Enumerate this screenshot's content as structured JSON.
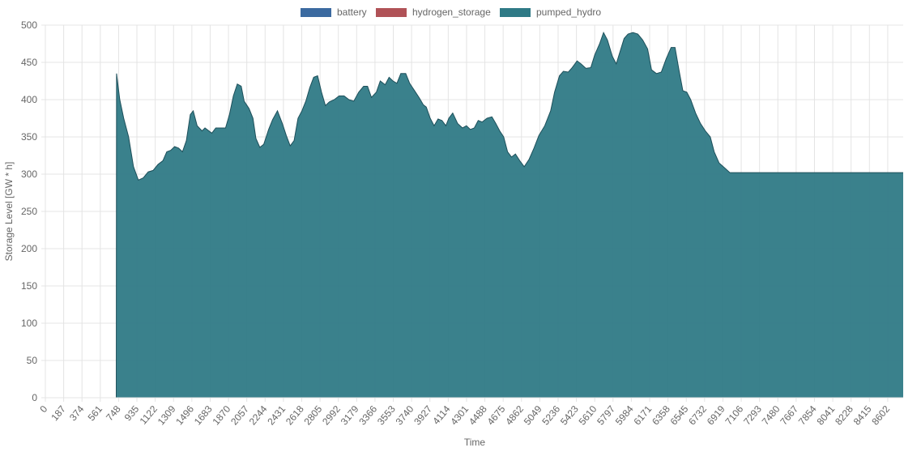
{
  "colors": {
    "battery": "#3b6aa0",
    "hydrogen_storage": "#b05257",
    "pumped_hydro": "#2f7a86",
    "grid": "#e4e4e4",
    "axis": "#999999",
    "text": "#666666"
  },
  "chart_data": {
    "type": "area",
    "xlabel": "Time",
    "ylabel": "Storage Level [GW * h]",
    "ylim": [
      0,
      500
    ],
    "xlim": [
      0,
      8760
    ],
    "yticks": [
      0,
      50,
      100,
      150,
      200,
      250,
      300,
      350,
      400,
      450,
      500
    ],
    "xticks": [
      0,
      187,
      374,
      561,
      748,
      935,
      1122,
      1309,
      1496,
      1683,
      1870,
      2057,
      2244,
      2431,
      2618,
      2805,
      2992,
      3179,
      3366,
      3553,
      3740,
      3927,
      4114,
      4301,
      4488,
      4675,
      4862,
      5049,
      5236,
      5423,
      5610,
      5797,
      5984,
      6171,
      6358,
      6545,
      6732,
      6919,
      7106,
      7293,
      7480,
      7667,
      7854,
      8041,
      8228,
      8415,
      8602
    ],
    "grid": true,
    "legend_position": "top",
    "series": [
      {
        "name": "battery",
        "color": "#3b6aa0",
        "points": [
          [
            0,
            0
          ],
          [
            8760,
            0
          ]
        ]
      },
      {
        "name": "hydrogen_storage",
        "color": "#b05257",
        "points": [
          [
            0,
            0
          ],
          [
            8760,
            0
          ]
        ]
      },
      {
        "name": "pumped_hydro",
        "color": "#2f7a86",
        "points": [
          [
            0,
            0
          ],
          [
            720,
            0
          ],
          [
            724,
            0
          ],
          [
            727,
            435
          ],
          [
            760,
            400
          ],
          [
            800,
            375
          ],
          [
            850,
            350
          ],
          [
            900,
            310
          ],
          [
            950,
            292
          ],
          [
            1000,
            295
          ],
          [
            1050,
            303
          ],
          [
            1100,
            305
          ],
          [
            1150,
            313
          ],
          [
            1200,
            318
          ],
          [
            1240,
            330
          ],
          [
            1280,
            332
          ],
          [
            1320,
            337
          ],
          [
            1360,
            335
          ],
          [
            1400,
            330
          ],
          [
            1440,
            345
          ],
          [
            1480,
            380
          ],
          [
            1510,
            385
          ],
          [
            1550,
            365
          ],
          [
            1600,
            358
          ],
          [
            1630,
            362
          ],
          [
            1700,
            355
          ],
          [
            1740,
            362
          ],
          [
            1800,
            362
          ],
          [
            1840,
            362
          ],
          [
            1880,
            380
          ],
          [
            1920,
            405
          ],
          [
            1960,
            421
          ],
          [
            2000,
            418
          ],
          [
            2030,
            398
          ],
          [
            2080,
            388
          ],
          [
            2120,
            375
          ],
          [
            2150,
            348
          ],
          [
            2190,
            336
          ],
          [
            2230,
            340
          ],
          [
            2280,
            360
          ],
          [
            2320,
            373
          ],
          [
            2370,
            385
          ],
          [
            2420,
            368
          ],
          [
            2460,
            352
          ],
          [
            2500,
            338
          ],
          [
            2540,
            345
          ],
          [
            2580,
            375
          ],
          [
            2620,
            385
          ],
          [
            2660,
            398
          ],
          [
            2700,
            416
          ],
          [
            2740,
            430
          ],
          [
            2780,
            432
          ],
          [
            2820,
            410
          ],
          [
            2860,
            392
          ],
          [
            2900,
            397
          ],
          [
            2950,
            400
          ],
          [
            3000,
            405
          ],
          [
            3050,
            405
          ],
          [
            3100,
            400
          ],
          [
            3150,
            398
          ],
          [
            3200,
            410
          ],
          [
            3250,
            418
          ],
          [
            3290,
            418
          ],
          [
            3330,
            403
          ],
          [
            3380,
            410
          ],
          [
            3420,
            425
          ],
          [
            3470,
            420
          ],
          [
            3510,
            430
          ],
          [
            3550,
            425
          ],
          [
            3590,
            422
          ],
          [
            3630,
            435
          ],
          [
            3680,
            435
          ],
          [
            3720,
            422
          ],
          [
            3770,
            412
          ],
          [
            3820,
            402
          ],
          [
            3860,
            393
          ],
          [
            3890,
            390
          ],
          [
            3930,
            375
          ],
          [
            3970,
            365
          ],
          [
            4010,
            374
          ],
          [
            4050,
            372
          ],
          [
            4090,
            365
          ],
          [
            4120,
            375
          ],
          [
            4160,
            382
          ],
          [
            4210,
            368
          ],
          [
            4260,
            362
          ],
          [
            4300,
            365
          ],
          [
            4340,
            360
          ],
          [
            4380,
            362
          ],
          [
            4420,
            372
          ],
          [
            4460,
            370
          ],
          [
            4510,
            375
          ],
          [
            4560,
            377
          ],
          [
            4600,
            368
          ],
          [
            4640,
            358
          ],
          [
            4680,
            350
          ],
          [
            4720,
            330
          ],
          [
            4760,
            323
          ],
          [
            4800,
            327
          ],
          [
            4850,
            317
          ],
          [
            4890,
            310
          ],
          [
            4940,
            320
          ],
          [
            4990,
            335
          ],
          [
            5040,
            352
          ],
          [
            5100,
            365
          ],
          [
            5160,
            385
          ],
          [
            5200,
            410
          ],
          [
            5250,
            432
          ],
          [
            5290,
            438
          ],
          [
            5340,
            437
          ],
          [
            5380,
            443
          ],
          [
            5430,
            452
          ],
          [
            5470,
            448
          ],
          [
            5520,
            442
          ],
          [
            5570,
            443
          ],
          [
            5610,
            460
          ],
          [
            5660,
            475
          ],
          [
            5700,
            490
          ],
          [
            5740,
            480
          ],
          [
            5790,
            458
          ],
          [
            5830,
            448
          ],
          [
            5870,
            465
          ],
          [
            5910,
            482
          ],
          [
            5950,
            488
          ],
          [
            6000,
            490
          ],
          [
            6050,
            488
          ],
          [
            6100,
            480
          ],
          [
            6150,
            468
          ],
          [
            6190,
            440
          ],
          [
            6240,
            435
          ],
          [
            6290,
            437
          ],
          [
            6340,
            455
          ],
          [
            6390,
            470
          ],
          [
            6430,
            470
          ],
          [
            6470,
            440
          ],
          [
            6510,
            412
          ],
          [
            6550,
            410
          ],
          [
            6590,
            400
          ],
          [
            6640,
            382
          ],
          [
            6690,
            368
          ],
          [
            6740,
            358
          ],
          [
            6790,
            350
          ],
          [
            6830,
            330
          ],
          [
            6880,
            315
          ],
          [
            6940,
            308
          ],
          [
            6990,
            302
          ],
          [
            8760,
            302
          ]
        ]
      }
    ]
  }
}
